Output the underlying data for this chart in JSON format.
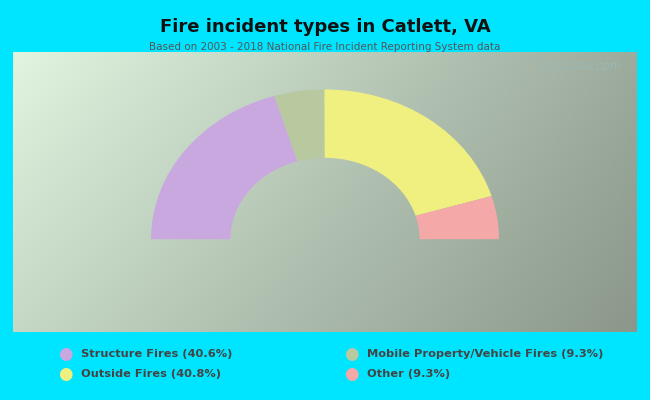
{
  "title": "Fire incident types in Catlett, VA",
  "subtitle": "Based on 2003 - 2018 National Fire Incident Reporting System data",
  "background_color": "#00e5ff",
  "watermark": "City-Data.com",
  "segments": [
    {
      "label": "Structure Fires (40.6%)",
      "value": 40.6,
      "color": "#c9a8e0"
    },
    {
      "label": "Mobile Property/Vehicle Fires (9.3%)",
      "value": 9.3,
      "color": "#b8c9a0"
    },
    {
      "label": "Outside Fires (40.8%)",
      "value": 40.8,
      "color": "#f0f080"
    },
    {
      "label": "Other (9.3%)",
      "value": 9.3,
      "color": "#f4a8a8"
    }
  ],
  "legend_left_labels": [
    "Structure Fires (40.6%)",
    "Outside Fires (40.8%)"
  ],
  "legend_left_colors": [
    "#c9a8e0",
    "#f0f080"
  ],
  "legend_right_labels": [
    "Mobile Property/Vehicle Fires (9.3%)",
    "Other (9.3%)"
  ],
  "legend_right_colors": [
    "#b8c9a0",
    "#f4a8a8"
  ],
  "legend_text_color": "#444444",
  "title_color": "#111111",
  "subtitle_color": "#555555",
  "outer_r": 0.92,
  "inner_r": 0.5
}
